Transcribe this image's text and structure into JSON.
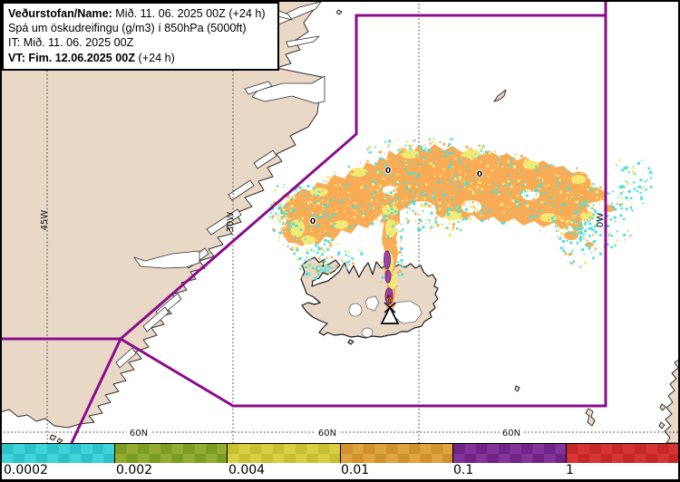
{
  "header": {
    "line1_label": "Veðurstofan/Name:",
    "line1_value": " Mið. 11. 06. 2025 00Z (+24 h)",
    "line2": "Spá um öskudreifingu (g/m3) í 850hPa (5000ft)",
    "line3": "IT: Mið. 11. 06. 2025 00Z",
    "line4_label": "VT: Fim. 12.06.2025 00Z",
    "line4_value": " (+24 h)"
  },
  "map": {
    "land_color": "#ead8c7",
    "coast_color": "#2f2f2f",
    "boundary_color": "#8a0c8a",
    "graticule": {
      "meridian_labels": [
        {
          "text": "45W"
        },
        {
          "text": "30W"
        },
        {
          "text": "0W"
        }
      ],
      "parallel_labels": [
        {
          "text": "60N"
        },
        {
          "text": "60N"
        },
        {
          "text": "60N"
        }
      ]
    },
    "contour_labels": [
      {
        "text": "0"
      },
      {
        "text": "0"
      },
      {
        "text": "0"
      },
      {
        "text": "0"
      }
    ],
    "plume": {
      "orange": "#f9ac55",
      "yellow": "#f3ea74",
      "cyan": "#4fdfdc",
      "purple": "#9a46a8",
      "dark_red": "#7e1a05"
    }
  },
  "colorbar": {
    "segments": [
      {
        "label": "0.0002",
        "light": "#3fd4da",
        "dark": "#2cc2ca"
      },
      {
        "label": "0.002",
        "light": "#93ad33",
        "dark": "#7d9c22"
      },
      {
        "label": "0.004",
        "light": "#d8cf43",
        "dark": "#c9bf30"
      },
      {
        "label": "0.01",
        "light": "#dfa33f",
        "dark": "#d1922e"
      },
      {
        "label": "0.1",
        "light": "#83349a",
        "dark": "#6f2486"
      },
      {
        "label": "1",
        "light": "#d63434",
        "dark": "#c62727"
      }
    ]
  }
}
